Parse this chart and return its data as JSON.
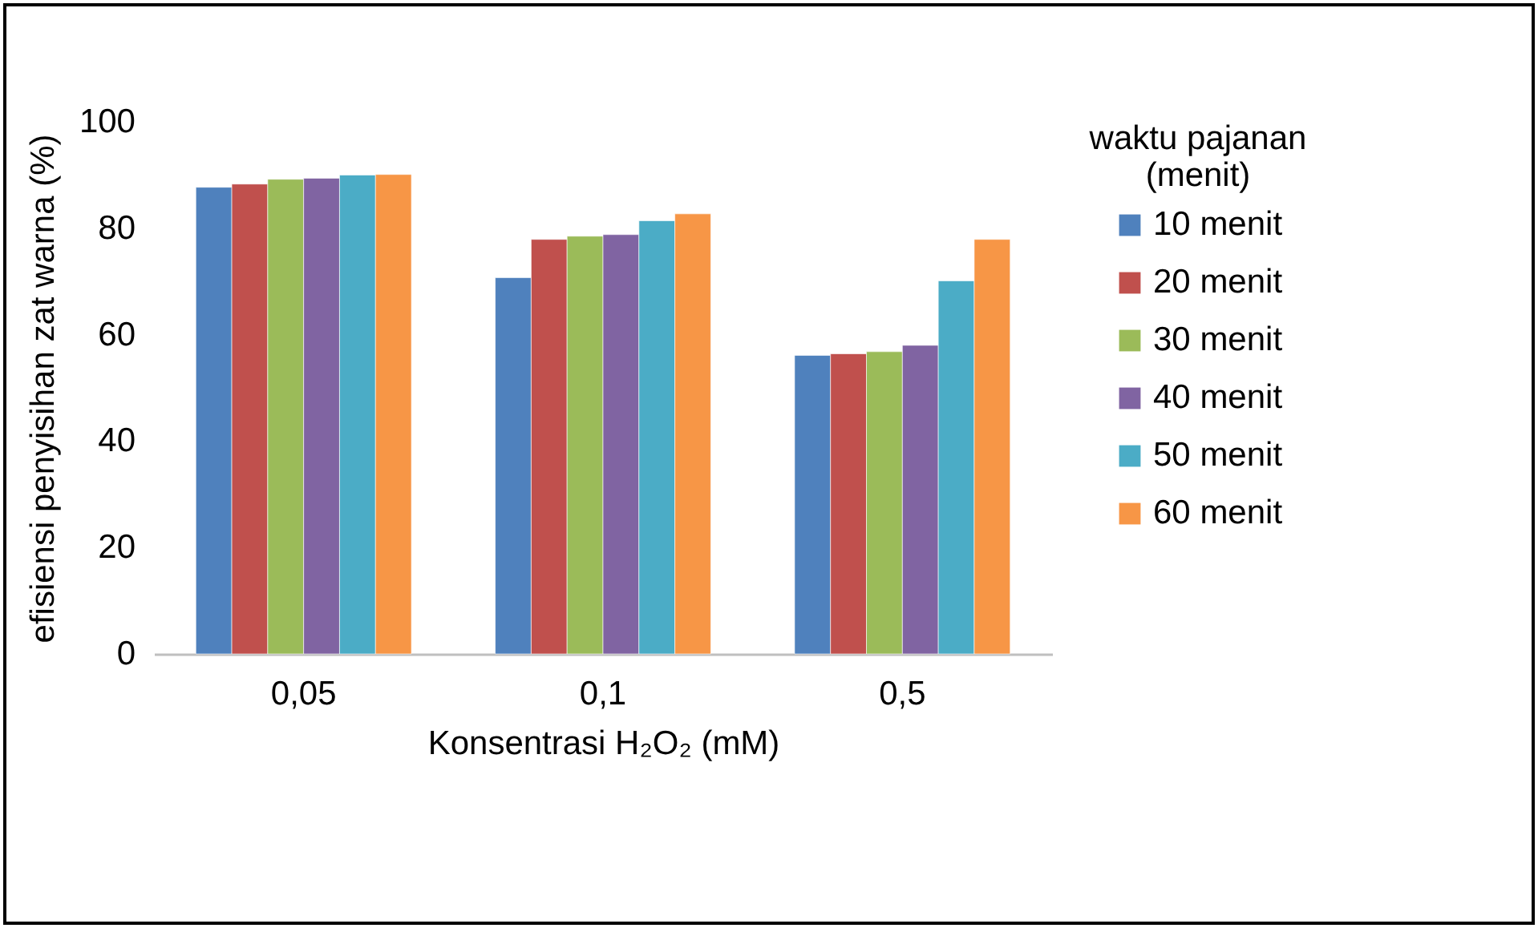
{
  "chart_data": {
    "type": "bar",
    "xlabel": "Konsentrasi H₂O₂ (mM)",
    "ylabel": "efisiensi penyisihan zat warna (%)",
    "legend_title": "waktu  pajanan\n(menit)",
    "categories": [
      "0,05",
      "0,1",
      "0,5"
    ],
    "series": [
      {
        "name": "10 menit",
        "color": "#4f81bd",
        "values": [
          87.7,
          70.7,
          56.1
        ]
      },
      {
        "name": "20 menit",
        "color": "#c0504d",
        "values": [
          88.3,
          77.9,
          56.4
        ]
      },
      {
        "name": "30 menit",
        "color": "#9bbb59",
        "values": [
          89.2,
          78.5,
          56.8
        ]
      },
      {
        "name": "40 menit",
        "color": "#8064a2",
        "values": [
          89.4,
          78.8,
          58.0
        ]
      },
      {
        "name": "50 menit",
        "color": "#4bacc6",
        "values": [
          90.0,
          81.4,
          70.1
        ]
      },
      {
        "name": "60 menit",
        "color": "#f79646",
        "values": [
          90.1,
          82.7,
          77.9
        ]
      }
    ],
    "ylim": [
      0,
      100
    ],
    "yticks": [
      0,
      20,
      40,
      60,
      80,
      100
    ],
    "grid": false,
    "legend": "right"
  }
}
